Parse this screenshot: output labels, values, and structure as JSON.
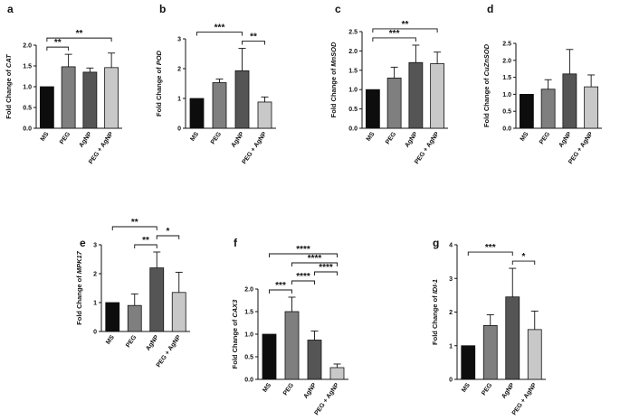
{
  "figure": {
    "bar_colors": [
      "#0d0d0d",
      "#7f7f7f",
      "#555555",
      "#c8c8c8"
    ]
  },
  "chart_data": [
    {
      "type": "bar",
      "panel": "a",
      "categories": [
        "MS",
        "PEG",
        "AgNP",
        "PEG + AgNP"
      ],
      "values": [
        1.0,
        1.48,
        1.35,
        1.46
      ],
      "errors": [
        0,
        0.3,
        0.1,
        0.35
      ],
      "ylabel_prefix": "Fold Change of ",
      "ylabel_gene": "CAT",
      "ylim": [
        0,
        2.0
      ],
      "yticks": [
        "0.0",
        "0.5",
        "1.0",
        "1.5",
        "2.0"
      ],
      "ytick_values": [
        0,
        0.5,
        1.0,
        1.5,
        2.0
      ],
      "significance": [
        {
          "from": 0,
          "to": 1,
          "label": "**"
        },
        {
          "from": 0,
          "to": 3,
          "label": "**"
        }
      ]
    },
    {
      "type": "bar",
      "panel": "b",
      "categories": [
        "MS",
        "PEG",
        "AgNP",
        "PEG + AgNP"
      ],
      "values": [
        1.0,
        1.53,
        1.93,
        0.88
      ],
      "errors": [
        0,
        0.12,
        0.75,
        0.17
      ],
      "ylabel_prefix": "Fold Change of ",
      "ylabel_gene": "POD",
      "ylim": [
        0,
        3
      ],
      "yticks": [
        "0",
        "1",
        "2",
        "3"
      ],
      "ytick_values": [
        0,
        1,
        2,
        3
      ],
      "significance": [
        {
          "from": 0,
          "to": 2,
          "label": "***"
        },
        {
          "from": 2,
          "to": 3,
          "label": "**"
        }
      ]
    },
    {
      "type": "bar",
      "panel": "c",
      "categories": [
        "MS",
        "PEG",
        "AgNP",
        "PEG + AgNP"
      ],
      "values": [
        1.0,
        1.3,
        1.7,
        1.67
      ],
      "errors": [
        0,
        0.28,
        0.45,
        0.3
      ],
      "ylabel_prefix": "Fold Change of ",
      "ylabel_gene": "MnSOD",
      "ylim": [
        0,
        2.5
      ],
      "yticks": [
        "0.0",
        "0.5",
        "1.0",
        "1.5",
        "2.0",
        "2.5"
      ],
      "ytick_values": [
        0,
        0.5,
        1.0,
        1.5,
        2.0,
        2.5
      ],
      "significance": [
        {
          "from": 0,
          "to": 2,
          "label": "***"
        },
        {
          "from": 0,
          "to": 3,
          "label": "**"
        }
      ]
    },
    {
      "type": "bar",
      "panel": "d",
      "categories": [
        "MS",
        "PEG",
        "AgNP",
        "PEG + AgNP"
      ],
      "values": [
        1.0,
        1.15,
        1.6,
        1.22
      ],
      "errors": [
        0,
        0.28,
        0.72,
        0.35
      ],
      "ylabel_prefix": "Fold Change of ",
      "ylabel_gene": "CuZnSOD",
      "ylim": [
        0,
        2.5
      ],
      "yticks": [
        "0.0",
        "0.5",
        "1.0",
        "1.5",
        "2.0",
        "2.5"
      ],
      "ytick_values": [
        0,
        0.5,
        1.0,
        1.5,
        2.0,
        2.5
      ],
      "significance": []
    },
    {
      "type": "bar",
      "panel": "e",
      "categories": [
        "MS",
        "PEG",
        "AgNP",
        "PEG + AgNP"
      ],
      "values": [
        1.0,
        0.9,
        2.2,
        1.35
      ],
      "errors": [
        0,
        0.4,
        0.55,
        0.7
      ],
      "ylabel_prefix": "Fold Change of ",
      "ylabel_gene": "MPK17",
      "ylim": [
        0,
        3
      ],
      "yticks": [
        "0",
        "1",
        "2",
        "3"
      ],
      "ytick_values": [
        0,
        1,
        2,
        3
      ],
      "significance": [
        {
          "from": 0,
          "to": 2,
          "label": "**"
        },
        {
          "from": 1,
          "to": 2,
          "label": "**"
        },
        {
          "from": 2,
          "to": 3,
          "label": "*"
        }
      ]
    },
    {
      "type": "bar",
      "panel": "f",
      "categories": [
        "MS",
        "PEG",
        "AgNP",
        "PEG + AgNP"
      ],
      "values": [
        1.0,
        1.5,
        0.87,
        0.26
      ],
      "errors": [
        0,
        0.32,
        0.2,
        0.08
      ],
      "ylabel_prefix": "Fold Change of ",
      "ylabel_gene": "CAX3",
      "ylim": [
        0,
        2.0
      ],
      "yticks": [
        "0.0",
        "0.5",
        "1.0",
        "1.5",
        "2.0"
      ],
      "ytick_values": [
        0,
        0.5,
        1.0,
        1.5,
        2.0
      ],
      "significance": [
        {
          "from": 0,
          "to": 1,
          "label": "***"
        },
        {
          "from": 1,
          "to": 2,
          "label": "****"
        },
        {
          "from": 2,
          "to": 3,
          "label": "****"
        },
        {
          "from": 1,
          "to": 3,
          "label": "****"
        },
        {
          "from": 0,
          "to": 3,
          "label": "****"
        }
      ]
    },
    {
      "type": "bar",
      "panel": "g",
      "categories": [
        "MS",
        "PEG",
        "AgNP",
        "PEG + AgNP"
      ],
      "values": [
        1.0,
        1.6,
        2.45,
        1.48
      ],
      "errors": [
        0,
        0.32,
        0.85,
        0.55
      ],
      "ylabel_prefix": "Fold Change of ",
      "ylabel_gene": "IDI-1",
      "ylim": [
        0,
        4
      ],
      "yticks": [
        "0",
        "1",
        "2",
        "3",
        "4"
      ],
      "ytick_values": [
        0,
        1,
        2,
        3,
        4
      ],
      "significance": [
        {
          "from": 0,
          "to": 2,
          "label": "***"
        },
        {
          "from": 2,
          "to": 3,
          "label": "*"
        }
      ]
    }
  ]
}
